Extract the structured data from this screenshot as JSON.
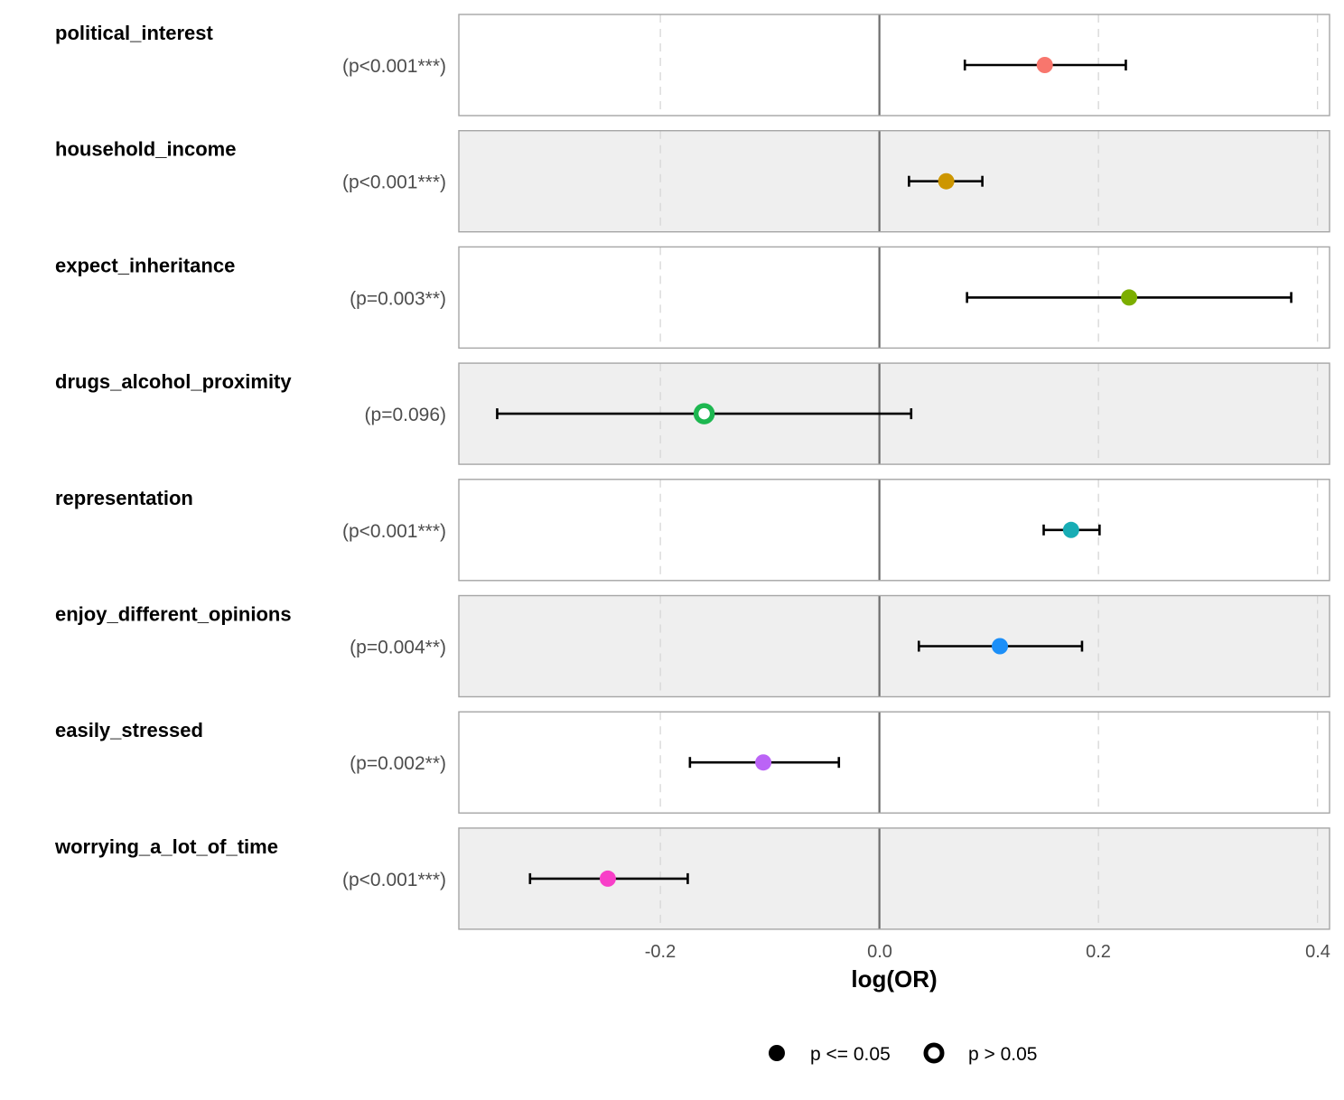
{
  "chart_data": {
    "type": "forest",
    "xlabel": "log(OR)",
    "xlim": [
      -0.384,
      0.411
    ],
    "xticks": [
      -0.2,
      0.0,
      0.2,
      0.4
    ],
    "xtick_labels": [
      "-0.2",
      "0.0",
      "0.2",
      "0.4"
    ],
    "reference_line": 0,
    "grid": "vertical dashed at ticks",
    "rows": [
      {
        "variable": "political_interest",
        "p_label": "(p<0.001***)",
        "estimate": 0.151,
        "ci_low": 0.078,
        "ci_high": 0.225,
        "significant": true,
        "color": "#F8766D",
        "band": "#ffffff"
      },
      {
        "variable": "household_income",
        "p_label": "(p<0.001***)",
        "estimate": 0.061,
        "ci_low": 0.027,
        "ci_high": 0.094,
        "significant": true,
        "color": "#CD9600",
        "band": "#efefef"
      },
      {
        "variable": "expect_inheritance",
        "p_label": "(p=0.003**)",
        "estimate": 0.228,
        "ci_low": 0.08,
        "ci_high": 0.376,
        "significant": true,
        "color": "#7CAE00",
        "band": "#ffffff"
      },
      {
        "variable": "drugs_alcohol_proximity",
        "p_label": "(p=0.096)",
        "estimate": -0.16,
        "ci_low": -0.349,
        "ci_high": 0.029,
        "significant": false,
        "color": "#1DB750",
        "band": "#efefef"
      },
      {
        "variable": "representation",
        "p_label": "(p<0.001***)",
        "estimate": 0.175,
        "ci_low": 0.15,
        "ci_high": 0.201,
        "significant": true,
        "color": "#18ADB5",
        "band": "#ffffff"
      },
      {
        "variable": "enjoy_different_opinions",
        "p_label": "(p=0.004**)",
        "estimate": 0.11,
        "ci_low": 0.036,
        "ci_high": 0.185,
        "significant": true,
        "color": "#1C8FF8",
        "band": "#efefef"
      },
      {
        "variable": "easily_stressed",
        "p_label": "(p=0.002**)",
        "estimate": -0.106,
        "ci_low": -0.173,
        "ci_high": -0.037,
        "significant": true,
        "color": "#BB64F6",
        "band": "#ffffff"
      },
      {
        "variable": "worrying_a_lot_of_time",
        "p_label": "(p<0.001***)",
        "estimate": -0.248,
        "ci_low": -0.319,
        "ci_high": -0.175,
        "significant": true,
        "color": "#F83FC8",
        "band": "#efefef"
      }
    ],
    "legend": {
      "position": "bottom",
      "items": [
        {
          "label": "p <= 0.05",
          "shape": "filled-circle"
        },
        {
          "label": "p > 0.05",
          "shape": "hollow-circle"
        }
      ]
    }
  }
}
